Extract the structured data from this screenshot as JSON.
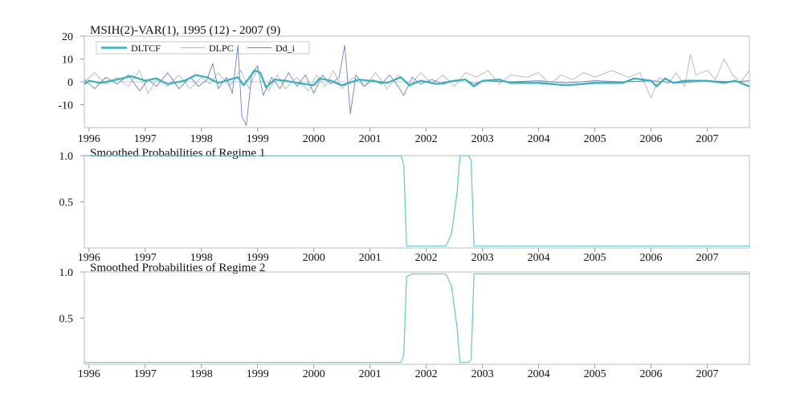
{
  "colors": {
    "dltcf": "#2fb3bf",
    "dlpc": "#b8b8b8",
    "dd_i": "#6b82c9",
    "prob": "#5fc9cf",
    "frame": "#bdbdbd"
  },
  "chart_data": [
    {
      "type": "line",
      "title": "MSIH(2)-VAR(1), 1995 (12) - 2007 (9)",
      "x_tick_labels": [
        "1996",
        "1997",
        "1998",
        "1999",
        "2000",
        "2001",
        "2002",
        "2003",
        "2004",
        "2005",
        "2006",
        "2007"
      ],
      "x_range": [
        1995.917,
        2007.75
      ],
      "ylim": [
        -20,
        20
      ],
      "y_ticks": [
        20,
        10,
        0,
        -10
      ],
      "y_tick_labels": [
        "20",
        "10",
        "0",
        "-10"
      ],
      "legend": [
        "DLTCF",
        "DLPC",
        "Dd_i"
      ],
      "legend_position": "top-left",
      "series": [
        {
          "name": "DLTCF",
          "points": [
            [
              1995.92,
              -1
            ],
            [
              1996.0,
              0.5
            ],
            [
              1996.2,
              -0.5
            ],
            [
              1996.5,
              1
            ],
            [
              1996.75,
              2.5
            ],
            [
              1997.0,
              0.5
            ],
            [
              1997.2,
              1.5
            ],
            [
              1997.4,
              -1
            ],
            [
              1997.7,
              0.5
            ],
            [
              1997.9,
              3
            ],
            [
              1998.1,
              2
            ],
            [
              1998.3,
              -0.5
            ],
            [
              1998.5,
              1
            ],
            [
              1998.65,
              2
            ],
            [
              1998.75,
              -1.5
            ],
            [
              1998.95,
              5
            ],
            [
              1999.05,
              4
            ],
            [
              1999.15,
              -2.5
            ],
            [
              1999.3,
              1
            ],
            [
              1999.5,
              0.5
            ],
            [
              1999.7,
              -0.5
            ],
            [
              2000.0,
              -1.5
            ],
            [
              2000.1,
              1.5
            ],
            [
              2000.3,
              0.5
            ],
            [
              2000.5,
              -1.5
            ],
            [
              2000.8,
              1
            ],
            [
              2001.0,
              0.5
            ],
            [
              2001.3,
              -0.5
            ],
            [
              2001.55,
              2
            ],
            [
              2001.7,
              -1.5
            ],
            [
              2001.9,
              0.5
            ],
            [
              2002.2,
              -1
            ],
            [
              2002.5,
              0.5
            ],
            [
              2002.7,
              1
            ],
            [
              2002.85,
              -2
            ],
            [
              2003.0,
              0.5
            ],
            [
              2003.3,
              1
            ],
            [
              2003.5,
              -0.5
            ],
            [
              2004.0,
              -0.5
            ],
            [
              2004.5,
              -1.5
            ],
            [
              2005.0,
              -0.5
            ],
            [
              2005.5,
              -0.5
            ],
            [
              2005.7,
              1.5
            ],
            [
              2006.0,
              0.5
            ],
            [
              2006.1,
              -2
            ],
            [
              2006.25,
              1.5
            ],
            [
              2006.4,
              -0.5
            ],
            [
              2006.6,
              0.5
            ],
            [
              2007.0,
              0.5
            ],
            [
              2007.3,
              -0.5
            ],
            [
              2007.5,
              0.5
            ],
            [
              2007.75,
              -2
            ]
          ]
        },
        {
          "name": "DLPC",
          "points": [
            [
              1995.92,
              0
            ],
            [
              1996.1,
              4
            ],
            [
              1996.3,
              -1
            ],
            [
              1996.5,
              2
            ],
            [
              1996.7,
              -2
            ],
            [
              1996.9,
              5
            ],
            [
              1997.05,
              -5
            ],
            [
              1997.2,
              1
            ],
            [
              1997.4,
              -2
            ],
            [
              1997.6,
              3
            ],
            [
              1997.8,
              -3
            ],
            [
              1998.0,
              2
            ],
            [
              1998.15,
              -1
            ],
            [
              1998.3,
              4
            ],
            [
              1998.5,
              -2
            ],
            [
              1998.7,
              5
            ],
            [
              1998.85,
              -3
            ],
            [
              1999.0,
              6
            ],
            [
              1999.2,
              -4
            ],
            [
              1999.35,
              3
            ],
            [
              1999.5,
              -3
            ],
            [
              1999.7,
              2
            ],
            [
              1999.9,
              -4
            ],
            [
              2000.05,
              3
            ],
            [
              2000.2,
              -2
            ],
            [
              2000.35,
              5
            ],
            [
              2000.5,
              -3
            ],
            [
              2000.7,
              2
            ],
            [
              2000.9,
              -2
            ],
            [
              2001.1,
              4
            ],
            [
              2001.3,
              -3
            ],
            [
              2001.5,
              3
            ],
            [
              2001.7,
              -2
            ],
            [
              2001.9,
              4
            ],
            [
              2002.1,
              -1
            ],
            [
              2002.3,
              3
            ],
            [
              2002.5,
              -2
            ],
            [
              2002.7,
              4
            ],
            [
              2002.9,
              2
            ],
            [
              2003.1,
              5
            ],
            [
              2003.3,
              -1
            ],
            [
              2003.5,
              3
            ],
            [
              2003.8,
              2
            ],
            [
              2004.0,
              4
            ],
            [
              2004.2,
              -1
            ],
            [
              2004.4,
              3
            ],
            [
              2004.6,
              1
            ],
            [
              2004.8,
              4
            ],
            [
              2005.0,
              2
            ],
            [
              2005.3,
              5
            ],
            [
              2005.6,
              2
            ],
            [
              2005.8,
              4
            ],
            [
              2006.0,
              -7
            ],
            [
              2006.15,
              2
            ],
            [
              2006.3,
              -1
            ],
            [
              2006.45,
              4
            ],
            [
              2006.6,
              -2
            ],
            [
              2006.7,
              12
            ],
            [
              2006.8,
              3
            ],
            [
              2007.0,
              5
            ],
            [
              2007.15,
              1
            ],
            [
              2007.3,
              10
            ],
            [
              2007.45,
              3
            ],
            [
              2007.6,
              0
            ],
            [
              2007.75,
              5
            ]
          ]
        },
        {
          "name": "Dd_i",
          "points": [
            [
              1995.92,
              1
            ],
            [
              1996.1,
              -3
            ],
            [
              1996.3,
              2
            ],
            [
              1996.5,
              -1
            ],
            [
              1996.7,
              3
            ],
            [
              1996.9,
              -4
            ],
            [
              1997.05,
              1
            ],
            [
              1997.2,
              -2
            ],
            [
              1997.4,
              4
            ],
            [
              1997.6,
              -3
            ],
            [
              1997.8,
              2
            ],
            [
              1997.95,
              -2
            ],
            [
              1998.1,
              1
            ],
            [
              1998.2,
              8
            ],
            [
              1998.3,
              -3
            ],
            [
              1998.45,
              2
            ],
            [
              1998.55,
              -5
            ],
            [
              1998.65,
              16
            ],
            [
              1998.72,
              -15
            ],
            [
              1998.8,
              -19
            ],
            [
              1998.9,
              4
            ],
            [
              1999.0,
              7
            ],
            [
              1999.1,
              -6
            ],
            [
              1999.25,
              2
            ],
            [
              1999.4,
              -3
            ],
            [
              1999.55,
              4
            ],
            [
              1999.7,
              -2
            ],
            [
              1999.85,
              3
            ],
            [
              2000.0,
              -5
            ],
            [
              2000.15,
              3
            ],
            [
              2000.3,
              -1
            ],
            [
              2000.45,
              2
            ],
            [
              2000.55,
              16
            ],
            [
              2000.65,
              -14
            ],
            [
              2000.75,
              3
            ],
            [
              2000.9,
              -2
            ],
            [
              2001.05,
              1
            ],
            [
              2001.2,
              -1
            ],
            [
              2001.35,
              3
            ],
            [
              2001.5,
              -2
            ],
            [
              2001.6,
              -6
            ],
            [
              2001.75,
              2
            ],
            [
              2001.9,
              -1
            ],
            [
              2002.1,
              1
            ],
            [
              2002.3,
              -1
            ],
            [
              2002.5,
              0.5
            ],
            [
              2002.7,
              1
            ],
            [
              2002.85,
              -1
            ],
            [
              2003.0,
              0.5
            ],
            [
              2003.5,
              0
            ],
            [
              2004.0,
              0.5
            ],
            [
              2004.5,
              -0.5
            ],
            [
              2005.0,
              0.5
            ],
            [
              2005.5,
              0
            ],
            [
              2006.0,
              0.5
            ],
            [
              2006.5,
              -0.5
            ],
            [
              2007.0,
              0.5
            ],
            [
              2007.5,
              0
            ],
            [
              2007.75,
              0.5
            ]
          ]
        }
      ]
    },
    {
      "type": "area",
      "title": "Smoothed Probabilities of Regime 1",
      "x_tick_labels": [
        "1996",
        "1997",
        "1998",
        "1999",
        "2000",
        "2001",
        "2002",
        "2003",
        "2004",
        "2005",
        "2006",
        "2007"
      ],
      "x_range": [
        1995.917,
        2007.75
      ],
      "ylim": [
        0,
        1
      ],
      "y_ticks": [
        1.0,
        0.5
      ],
      "y_tick_labels": [
        "1.0",
        "0.5"
      ],
      "series": [
        {
          "name": "Regime 1",
          "points": [
            [
              1995.92,
              1
            ],
            [
              2001.55,
              1
            ],
            [
              2001.6,
              0.9
            ],
            [
              2001.65,
              0.02
            ],
            [
              2002.35,
              0.02
            ],
            [
              2002.45,
              0.15
            ],
            [
              2002.55,
              0.6
            ],
            [
              2002.6,
              1
            ],
            [
              2002.75,
              1
            ],
            [
              2002.8,
              0.95
            ],
            [
              2002.85,
              0.02
            ],
            [
              2007.75,
              0.02
            ]
          ]
        }
      ]
    },
    {
      "type": "area",
      "title": "Smoothed Probabilities of Regime 2",
      "x_tick_labels": [
        "1996",
        "1997",
        "1998",
        "1999",
        "2000",
        "2001",
        "2002",
        "2003",
        "2004",
        "2005",
        "2006",
        "2007"
      ],
      "x_range": [
        1995.917,
        2007.75
      ],
      "ylim": [
        0,
        1
      ],
      "y_ticks": [
        1.0,
        0.5
      ],
      "y_tick_labels": [
        "1.0",
        "0.5"
      ],
      "series": [
        {
          "name": "Regime 2",
          "points": [
            [
              1995.92,
              0.02
            ],
            [
              2001.55,
              0.02
            ],
            [
              2001.6,
              0.1
            ],
            [
              2001.65,
              0.95
            ],
            [
              2001.75,
              0.98
            ],
            [
              2002.35,
              0.98
            ],
            [
              2002.45,
              0.85
            ],
            [
              2002.55,
              0.4
            ],
            [
              2002.6,
              0.02
            ],
            [
              2002.75,
              0.02
            ],
            [
              2002.8,
              0.05
            ],
            [
              2002.85,
              0.98
            ],
            [
              2007.75,
              0.98
            ]
          ]
        }
      ]
    }
  ]
}
